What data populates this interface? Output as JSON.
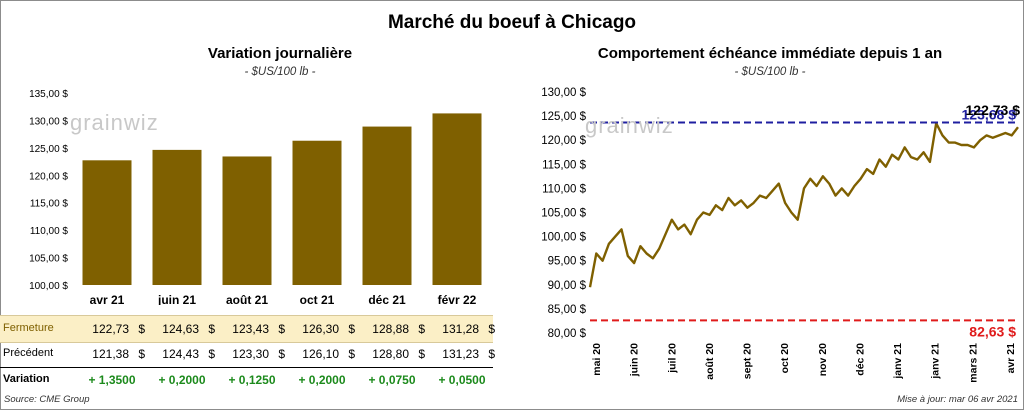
{
  "page": {
    "title": "Marché du boeuf à Chicago"
  },
  "watermark": "grainwiz",
  "left_chart": {
    "subtitle": "Variation  journalière",
    "units": "- $US/100 lb -"
  },
  "right_chart": {
    "subtitle": "Comportement  échéance immédiate depuis 1 an",
    "units": "- $US/100 lb -"
  },
  "table": {
    "rows": [
      {
        "label": "Fermeture",
        "values": [
          "122,73",
          "124,63",
          "123,43",
          "126,30",
          "128,88",
          "131,28"
        ],
        "currency": "$"
      },
      {
        "label": "Précédent",
        "values": [
          "121,38",
          "124,43",
          "123,30",
          "126,10",
          "128,80",
          "131,23"
        ],
        "currency": "$"
      }
    ],
    "variation": {
      "label": "Variation",
      "values": [
        "+ 1,3500",
        "+ 0,2000",
        "+ 0,1250",
        "+ 0,2000",
        "+ 0,0750",
        "+ 0,0500"
      ]
    }
  },
  "footer": {
    "source": "Source: CME Group",
    "updated": "Mise à jour: mar 06 avr 2021"
  },
  "colors": {
    "bar": "#7f6000",
    "line": "#7f6000",
    "high_line": "#1f1fa0",
    "low_line": "#e01b1b",
    "fermeture_row_bg": "#fbefc6",
    "variation_text": "#1c8a1c"
  },
  "chart_data": [
    {
      "type": "bar",
      "categories": [
        "avr 21",
        "juin 21",
        "août 21",
        "oct 21",
        "déc 21",
        "févr 22"
      ],
      "values": [
        122.73,
        124.63,
        123.43,
        126.3,
        128.88,
        131.28
      ],
      "ylim": [
        100,
        135
      ],
      "yticks": [
        100,
        105,
        110,
        115,
        120,
        125,
        130,
        135
      ],
      "ytick_labels": [
        "100,00 $",
        "105,00 $",
        "110,00 $",
        "115,00 $",
        "120,00 $",
        "125,00 $",
        "130,00 $",
        "135,00 $"
      ],
      "grid": false
    },
    {
      "type": "line",
      "ylim": [
        80,
        130
      ],
      "yticks": [
        80,
        85,
        90,
        95,
        100,
        105,
        110,
        115,
        120,
        125,
        130
      ],
      "ytick_labels": [
        "80,00 $",
        "85,00 $",
        "90,00 $",
        "95,00 $",
        "100,00 $",
        "105,00 $",
        "110,00 $",
        "115,00 $",
        "120,00 $",
        "125,00 $",
        "130,00 $"
      ],
      "xticks": [
        "mai 20",
        "juin 20",
        "juil 20",
        "août 20",
        "sept 20",
        "oct 20",
        "nov 20",
        "déc 20",
        "janv 21",
        "janv 21",
        "mars 21",
        "avr 21"
      ],
      "x": [
        "2020-05-01",
        "2020-05-06",
        "2020-05-11",
        "2020-05-16",
        "2020-05-21",
        "2020-05-26",
        "2020-05-31",
        "2020-06-05",
        "2020-06-10",
        "2020-06-15",
        "2020-06-20",
        "2020-06-25",
        "2020-06-30",
        "2020-07-05",
        "2020-07-10",
        "2020-07-15",
        "2020-07-20",
        "2020-07-25",
        "2020-07-30",
        "2020-08-04",
        "2020-08-09",
        "2020-08-14",
        "2020-08-19",
        "2020-08-24",
        "2020-08-29",
        "2020-09-03",
        "2020-09-08",
        "2020-09-13",
        "2020-09-18",
        "2020-09-23",
        "2020-09-28",
        "2020-10-03",
        "2020-10-08",
        "2020-10-13",
        "2020-10-18",
        "2020-10-23",
        "2020-10-28",
        "2020-11-02",
        "2020-11-07",
        "2020-11-12",
        "2020-11-17",
        "2020-11-22",
        "2020-11-27",
        "2020-12-02",
        "2020-12-07",
        "2020-12-12",
        "2020-12-17",
        "2020-12-22",
        "2020-12-27",
        "2021-01-01",
        "2021-01-06",
        "2021-01-11",
        "2021-01-16",
        "2021-01-21",
        "2021-01-26",
        "2021-01-31",
        "2021-02-05",
        "2021-02-10",
        "2021-02-15",
        "2021-02-20",
        "2021-02-25",
        "2021-03-02",
        "2021-03-07",
        "2021-03-12",
        "2021-03-17",
        "2021-03-22",
        "2021-03-27",
        "2021-04-01",
        "2021-04-06"
      ],
      "series": [
        {
          "values": [
            89.5,
            96.5,
            95,
            98.5,
            100,
            101.5,
            96,
            94.5,
            98,
            96.5,
            95.5,
            97.5,
            100.5,
            103.5,
            101.5,
            102.5,
            100.5,
            103.5,
            105,
            104.5,
            106.5,
            105.5,
            108,
            106.5,
            107.5,
            106,
            107,
            108.5,
            108,
            109.5,
            111,
            107,
            105,
            103.5,
            110,
            112,
            110.5,
            112.5,
            111,
            108.5,
            110,
            108.5,
            110.5,
            112,
            114,
            113,
            116,
            114.5,
            117,
            116,
            118.5,
            116.5,
            116,
            117.5,
            115.5,
            123.5,
            121,
            119.5,
            119.5,
            119,
            119,
            118.5,
            120,
            121,
            120.5,
            121,
            121.5,
            121,
            122.7
          ]
        }
      ],
      "reference_lines": [
        {
          "value": 123.68,
          "label": "123,68 $",
          "color": "#1f1fa0"
        },
        {
          "value": 82.63,
          "label": "82,63 $",
          "color": "#e01b1b"
        }
      ],
      "last_value_label": "122,73 $",
      "grid": false
    }
  ]
}
